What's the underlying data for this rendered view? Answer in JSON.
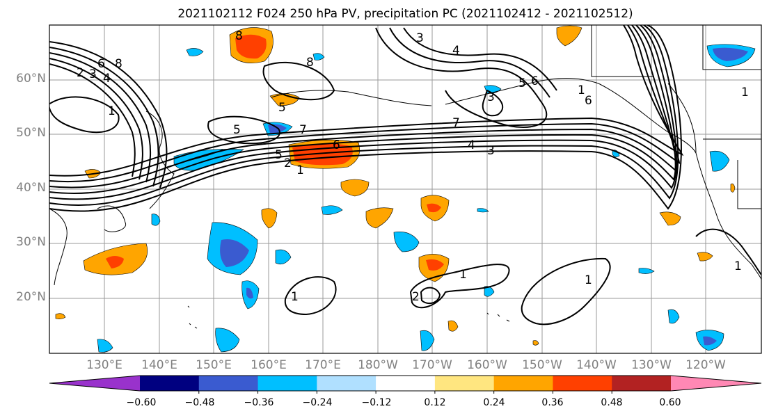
{
  "title": "2021102112 F024 250 hPa PV, precipitation PC (2021102412 - 2021102512)",
  "lat_labels": [
    "60°N",
    "50°N",
    "40°N",
    "30°N",
    "20°N"
  ],
  "lon_labels": [
    "130°E",
    "140°E",
    "150°E",
    "160°E",
    "170°E",
    "180°W",
    "170°W",
    "160°W",
    "150°W",
    "140°W",
    "130°W",
    "120°W"
  ],
  "colorbar": {
    "ticks": [
      "−0.60",
      "−0.48",
      "−0.36",
      "−0.24",
      "−0.12",
      "0.12",
      "0.24",
      "0.36",
      "0.48",
      "0.60"
    ],
    "colors": [
      "#9932cc",
      "#000080",
      "#3a5bd0",
      "#00bfff",
      "#b0e0ff",
      "#ffffff",
      "#ffe680",
      "#ffa500",
      "#ff4000",
      "#b22222",
      "#ff88b4"
    ]
  },
  "contour_labels": [
    "8",
    "6",
    "8",
    "2",
    "3",
    "4",
    "1",
    "5",
    "7",
    "6",
    "2",
    "1",
    "5",
    "8",
    "3",
    "4",
    "3",
    "7",
    "6",
    "1",
    "5",
    "6",
    "3",
    "4",
    "5",
    "1",
    "2",
    "1",
    "1",
    "1",
    "1"
  ],
  "pv_colors": {
    "neg_strong": "#3a5bd0",
    "neg": "#00bfff",
    "pos": "#ffa500",
    "pos_strong": "#ff4000",
    "pos_light": "#ffe680"
  }
}
